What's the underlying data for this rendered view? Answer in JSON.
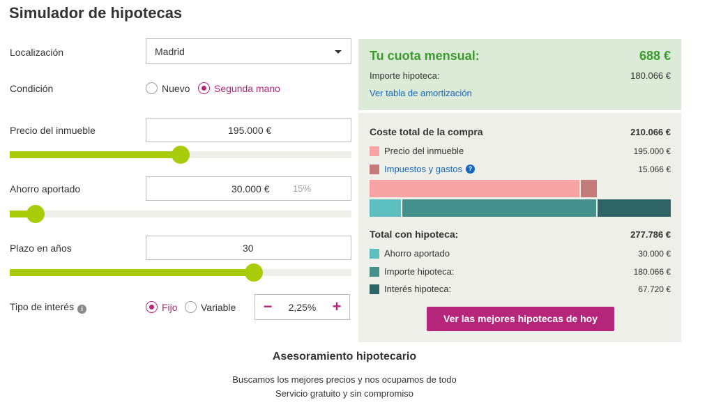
{
  "title": "Simulador de hipotecas",
  "form": {
    "location": {
      "label": "Localización",
      "value": "Madrid"
    },
    "condition": {
      "label": "Condición",
      "options": [
        "Nuevo",
        "Segunda mano"
      ],
      "selected": "Segunda mano"
    },
    "price": {
      "label": "Precio del inmueble",
      "value": "195.000 €",
      "slider_fraction": 0.5
    },
    "savings": {
      "label": "Ahorro aportado",
      "value": "30.000 €",
      "percent": "15%",
      "slider_fraction": 0.075
    },
    "term": {
      "label": "Plazo en años",
      "value": "30",
      "slider_fraction": 0.715
    },
    "interest": {
      "label": "Tipo de interés",
      "options": [
        "Fijo",
        "Variable"
      ],
      "selected": "Fijo",
      "rate": "2,25%",
      "minus": "−",
      "plus": "+"
    }
  },
  "summary": {
    "cuota_label": "Tu cuota mensual:",
    "cuota_value": "688 €",
    "importe_label": "Importe hipoteca:",
    "importe_value": "180.066 €",
    "amort_link": "Ver tabla de amortización",
    "coste_title": "Coste total de la compra",
    "coste_value": "210.066 €",
    "coste_items": [
      {
        "label": "Precio del inmueble",
        "value": "195.000 €",
        "color": "#f7a3a3",
        "amount": 195000
      },
      {
        "label": "Impuestos y gastos",
        "value": "15.066 €",
        "color": "#c57a7a",
        "amount": 15066
      }
    ],
    "hipoteca_title": "Total con hipoteca:",
    "hipoteca_value": "277.786 €",
    "hipoteca_items": [
      {
        "label": "Ahorro aportado",
        "value": "30.000 €",
        "color": "#5dbfbf",
        "amount": 30000
      },
      {
        "label": "Importe hipoteca:",
        "value": "180.066 €",
        "color": "#43908c",
        "amount": 180066
      },
      {
        "label": "Interés hipoteca:",
        "value": "67.720 €",
        "color": "#2f6466",
        "amount": 67720
      }
    ],
    "cta": "Ver las mejores hipotecas de hoy"
  },
  "footer": {
    "title": "Asesoramiento hipotecario",
    "line1": "Buscamos los mejores precios y nos ocupamos de todo",
    "line2": "Servicio gratuito y sin compromiso"
  },
  "colors": {
    "accent": "#b5267a",
    "slider": "#a8cc0a",
    "cuota": "#3a9a2b",
    "link": "#1565c0"
  }
}
